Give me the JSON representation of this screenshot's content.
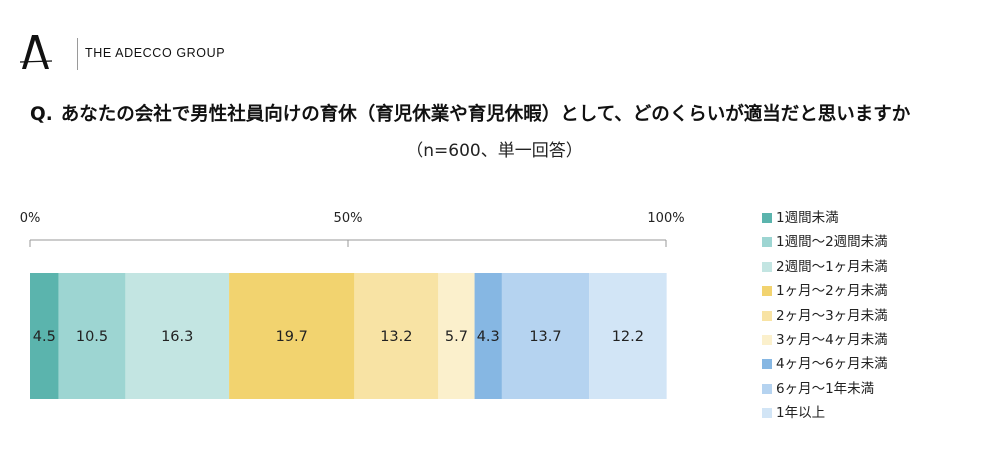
{
  "header": {
    "logo_text": "THE ADECCO GROUP",
    "question_prefix": "Q.",
    "question_text": "あなたの会社で男性社員向けの育休（育児休業や育児休暇）として、どのくらいが適当だと思いますか",
    "subtitle": "（n=600、単一回答）"
  },
  "chart_data": {
    "type": "bar",
    "orientation": "horizontal-stacked-100",
    "title": "",
    "xlim": [
      0,
      100
    ],
    "ticks": [
      {
        "value": 0,
        "label": "0%"
      },
      {
        "value": 50,
        "label": "50%"
      },
      {
        "value": 100,
        "label": "100%"
      }
    ],
    "legend_position": "right",
    "series": [
      {
        "name": "1週間未満",
        "value": 4.5,
        "label": "4.5",
        "color": "#5bb4ad"
      },
      {
        "name": "1週間～2週間未満",
        "value": 10.5,
        "label": "10.5",
        "color": "#9dd5d2"
      },
      {
        "name": "2週間～1ヶ月未満",
        "value": 16.3,
        "label": "16.3",
        "color": "#c3e5e2"
      },
      {
        "name": "1ヶ月～2ヶ月未満",
        "value": 19.7,
        "label": "19.7",
        "color": "#f2d36f"
      },
      {
        "name": "2ヶ月～3ヶ月未満",
        "value": 13.2,
        "label": "13.2",
        "color": "#f8e3a4"
      },
      {
        "name": "3ヶ月～4ヶ月未満",
        "value": 5.7,
        "label": "5.7",
        "color": "#fbf0cc"
      },
      {
        "name": "4ヶ月～6ヶ月未満",
        "value": 4.3,
        "label": "4.3",
        "color": "#86b7e3"
      },
      {
        "name": "6ヶ月～1年未満",
        "value": 13.7,
        "label": "13.7",
        "color": "#b5d3f0"
      },
      {
        "name": "1年以上",
        "value": 12.2,
        "label": "12.2",
        "color": "#d2e5f6"
      }
    ]
  }
}
